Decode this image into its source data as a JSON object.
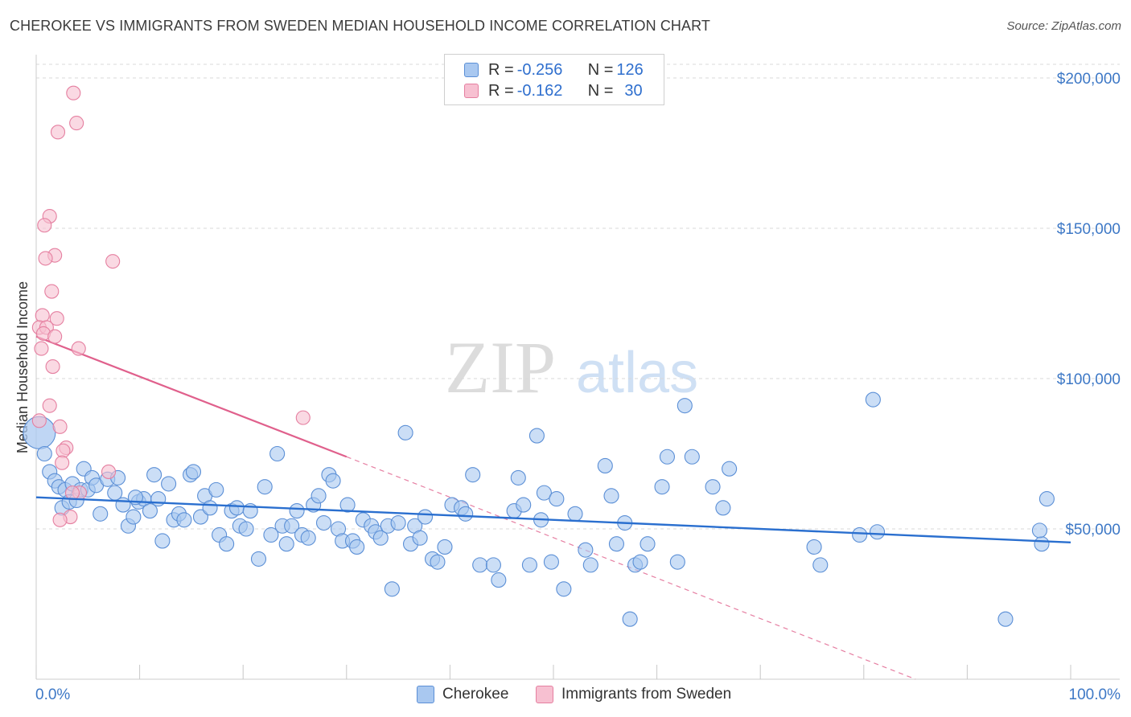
{
  "title": "CHEROKEE VS IMMIGRANTS FROM SWEDEN MEDIAN HOUSEHOLD INCOME CORRELATION CHART",
  "source": "Source: ZipAtlas.com",
  "watermark": {
    "zip": "ZIP",
    "atlas": "atlas"
  },
  "colors": {
    "cherokee_fill": "#a9c8f0",
    "cherokee_stroke": "#5b8fd6",
    "cherokee_line": "#2a6fcf",
    "sweden_fill": "#f7c0d1",
    "sweden_stroke": "#e57fa0",
    "sweden_line": "#e0608c",
    "grid": "#d9d9d9",
    "tick_text": "#3d78c6"
  },
  "legend": {
    "rows": [
      {
        "r_label": "R = ",
        "r_value": "-0.256",
        "n_label": "N = ",
        "n_value": "126"
      },
      {
        "r_label": "R = ",
        "r_value": "-0.162",
        "n_label": "N = ",
        "n_value": "30"
      }
    ]
  },
  "bottom_legend": {
    "cherokee": "Cherokee",
    "sweden": "Immigrants from Sweden"
  },
  "chart_data": {
    "type": "scatter",
    "title": "CHEROKEE VS IMMIGRANTS FROM SWEDEN MEDIAN HOUSEHOLD INCOME CORRELATION CHART",
    "xlabel": "",
    "ylabel": "Median Household Income",
    "xlim": [
      0,
      100
    ],
    "ylim": [
      0,
      205000
    ],
    "x_tick_labels": [
      "0.0%",
      "100.0%"
    ],
    "y_ticks": [
      50000,
      100000,
      150000,
      200000
    ],
    "y_tick_labels": [
      "$50,000",
      "$100,000",
      "$150,000",
      "$200,000"
    ],
    "grid": true,
    "legend_position": "top-center",
    "series": [
      {
        "name": "Cherokee",
        "R": -0.256,
        "N": 126,
        "trend": {
          "x": [
            0,
            100
          ],
          "y": [
            60500,
            45500
          ]
        },
        "points": [
          [
            0.3,
            82000
          ],
          [
            0.8,
            75000
          ],
          [
            1.3,
            69000
          ],
          [
            1.8,
            66000
          ],
          [
            2.2,
            64000
          ],
          [
            2.5,
            57000
          ],
          [
            2.8,
            63000
          ],
          [
            3.2,
            59000
          ],
          [
            3.5,
            65000
          ],
          [
            3.9,
            59500
          ],
          [
            4.3,
            63000
          ],
          [
            4.6,
            70000
          ],
          [
            5.0,
            63000
          ],
          [
            5.4,
            67000
          ],
          [
            5.8,
            64500
          ],
          [
            6.2,
            55000
          ],
          [
            6.9,
            66500
          ],
          [
            7.6,
            62000
          ],
          [
            7.9,
            67000
          ],
          [
            8.4,
            58000
          ],
          [
            8.9,
            51000
          ],
          [
            9.4,
            54000
          ],
          [
            9.9,
            59000
          ],
          [
            10.4,
            60000
          ],
          [
            11.0,
            56000
          ],
          [
            11.4,
            68000
          ],
          [
            11.8,
            60000
          ],
          [
            12.2,
            46000
          ],
          [
            12.8,
            65000
          ],
          [
            13.3,
            53000
          ],
          [
            13.8,
            55000
          ],
          [
            14.3,
            53000
          ],
          [
            14.9,
            68000
          ],
          [
            15.2,
            69000
          ],
          [
            15.9,
            54000
          ],
          [
            16.3,
            61000
          ],
          [
            16.8,
            57000
          ],
          [
            17.4,
            63000
          ],
          [
            17.7,
            48000
          ],
          [
            18.4,
            45000
          ],
          [
            18.9,
            56000
          ],
          [
            19.4,
            57000
          ],
          [
            19.7,
            51000
          ],
          [
            20.3,
            50000
          ],
          [
            20.7,
            56000
          ],
          [
            21.5,
            40000
          ],
          [
            22.1,
            64000
          ],
          [
            22.7,
            48000
          ],
          [
            23.3,
            75000
          ],
          [
            23.8,
            51000
          ],
          [
            24.2,
            45000
          ],
          [
            24.7,
            51000
          ],
          [
            25.2,
            56000
          ],
          [
            25.7,
            48000
          ],
          [
            26.3,
            47000
          ],
          [
            26.8,
            58000
          ],
          [
            27.3,
            61000
          ],
          [
            27.8,
            52000
          ],
          [
            28.3,
            68000
          ],
          [
            28.7,
            66000
          ],
          [
            29.2,
            50000
          ],
          [
            29.6,
            46000
          ],
          [
            30.1,
            58000
          ],
          [
            30.6,
            46000
          ],
          [
            31.0,
            44000
          ],
          [
            31.6,
            53000
          ],
          [
            32.4,
            51000
          ],
          [
            32.8,
            49000
          ],
          [
            33.3,
            47000
          ],
          [
            34.0,
            51000
          ],
          [
            34.4,
            30000
          ],
          [
            35.0,
            52000
          ],
          [
            35.7,
            82000
          ],
          [
            36.2,
            45000
          ],
          [
            36.6,
            51000
          ],
          [
            37.1,
            47000
          ],
          [
            37.6,
            54000
          ],
          [
            38.3,
            40000
          ],
          [
            38.8,
            39000
          ],
          [
            39.5,
            44000
          ],
          [
            40.2,
            58000
          ],
          [
            41.1,
            57000
          ],
          [
            41.5,
            55000
          ],
          [
            42.2,
            68000
          ],
          [
            42.9,
            38000
          ],
          [
            44.2,
            38000
          ],
          [
            44.7,
            33000
          ],
          [
            46.2,
            56000
          ],
          [
            46.6,
            67000
          ],
          [
            47.1,
            58000
          ],
          [
            47.7,
            38000
          ],
          [
            48.4,
            81000
          ],
          [
            48.8,
            53000
          ],
          [
            49.1,
            62000
          ],
          [
            49.8,
            39000
          ],
          [
            50.3,
            60000
          ],
          [
            51.0,
            30000
          ],
          [
            52.1,
            55000
          ],
          [
            53.1,
            43000
          ],
          [
            53.6,
            38000
          ],
          [
            55.0,
            71000
          ],
          [
            55.6,
            61000
          ],
          [
            56.1,
            45000
          ],
          [
            56.9,
            52000
          ],
          [
            57.4,
            20000
          ],
          [
            57.9,
            38000
          ],
          [
            58.4,
            39000
          ],
          [
            59.1,
            45000
          ],
          [
            60.5,
            64000
          ],
          [
            61.0,
            74000
          ],
          [
            62.0,
            39000
          ],
          [
            62.7,
            91000
          ],
          [
            63.4,
            74000
          ],
          [
            65.4,
            64000
          ],
          [
            66.4,
            57000
          ],
          [
            67.0,
            70000
          ],
          [
            75.2,
            44000
          ],
          [
            75.8,
            38000
          ],
          [
            79.6,
            48000
          ],
          [
            80.9,
            93000
          ],
          [
            81.3,
            49000
          ],
          [
            93.7,
            20000
          ],
          [
            97.2,
            45000
          ],
          [
            97.7,
            60000
          ],
          [
            97.0,
            49500
          ],
          [
            9.6,
            60500
          ]
        ]
      },
      {
        "name": "Immigrants from Sweden",
        "R": -0.162,
        "N": 30,
        "trend": {
          "x": [
            0,
            30
          ],
          "y": [
            114000,
            74000
          ],
          "dashed_extension_to": [
            85,
            0
          ]
        },
        "points": [
          [
            3.6,
            195000
          ],
          [
            3.9,
            185000
          ],
          [
            2.1,
            182000
          ],
          [
            1.3,
            154000
          ],
          [
            0.8,
            151000
          ],
          [
            1.8,
            141000
          ],
          [
            0.9,
            140000
          ],
          [
            7.4,
            139000
          ],
          [
            1.5,
            129000
          ],
          [
            0.6,
            121000
          ],
          [
            2.0,
            120000
          ],
          [
            0.3,
            117000
          ],
          [
            1.0,
            117000
          ],
          [
            0.7,
            115000
          ],
          [
            1.8,
            114000
          ],
          [
            0.5,
            110000
          ],
          [
            4.1,
            110000
          ],
          [
            1.6,
            104000
          ],
          [
            1.3,
            91000
          ],
          [
            25.8,
            87000
          ],
          [
            0.3,
            86000
          ],
          [
            2.3,
            84000
          ],
          [
            2.9,
            77000
          ],
          [
            2.6,
            76000
          ],
          [
            2.5,
            72000
          ],
          [
            7.0,
            69000
          ],
          [
            4.2,
            62000
          ],
          [
            3.5,
            62000
          ],
          [
            3.3,
            54000
          ],
          [
            2.3,
            53000
          ]
        ]
      }
    ]
  }
}
